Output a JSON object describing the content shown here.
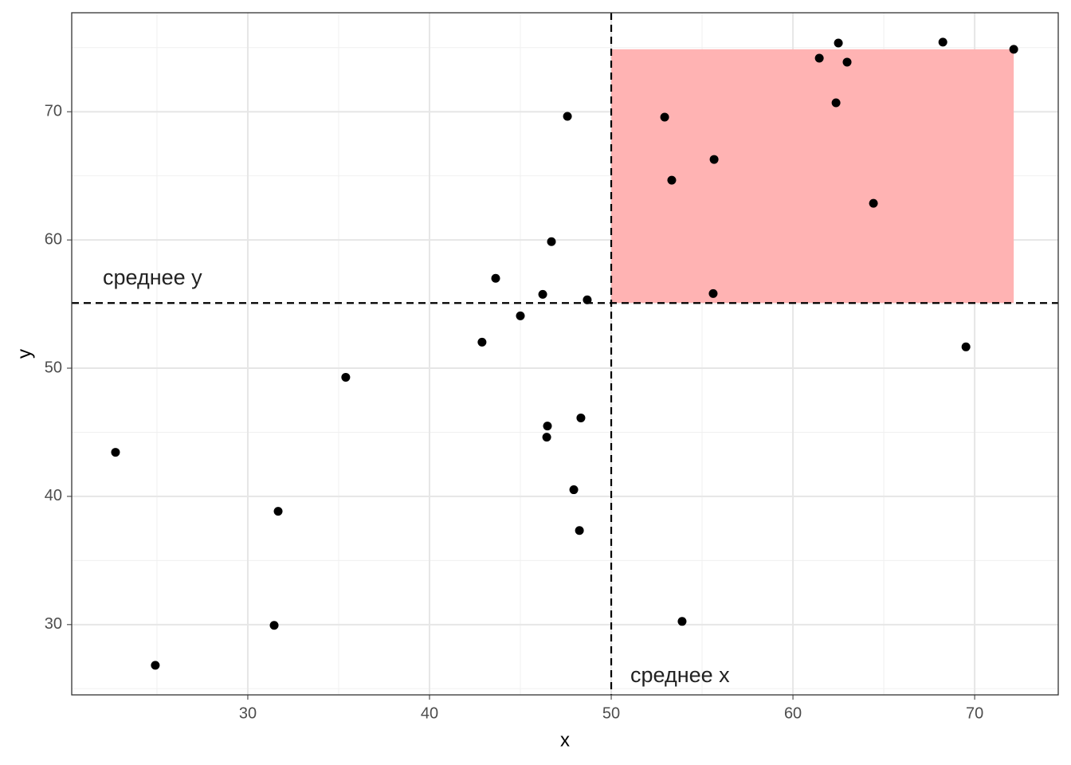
{
  "chart_data": {
    "type": "scatter",
    "x_label": "x",
    "y_label": "y",
    "xlim": [
      20.31,
      74.6
    ],
    "ylim": [
      24.52,
      77.72
    ],
    "xticks": [
      30,
      40,
      50,
      60,
      70
    ],
    "yticks": [
      30,
      40,
      50,
      60,
      70
    ],
    "grid": true,
    "color": "#000000",
    "x": [
      22.72,
      24.91,
      31.45,
      31.67,
      35.39,
      42.89,
      43.64,
      45.0,
      46.23,
      46.71,
      47.59,
      48.68,
      46.49,
      46.45,
      48.33,
      47.94,
      48.25,
      52.94,
      53.33,
      55.66,
      55.61,
      53.9,
      61.45,
      62.5,
      62.98,
      62.37,
      64.43,
      68.25,
      69.52,
      72.15
    ],
    "values": [
      43.44,
      26.83,
      29.94,
      38.84,
      49.29,
      52.03,
      57.01,
      54.08,
      55.76,
      59.87,
      69.64,
      55.33,
      45.49,
      44.62,
      46.12,
      40.52,
      37.34,
      69.58,
      64.66,
      66.28,
      55.82,
      30.25,
      74.18,
      75.36,
      73.87,
      70.7,
      62.86,
      75.43,
      51.66,
      74.87
    ],
    "reference_lines": {
      "x": 50.0,
      "y": 55.08
    },
    "highlight": {
      "xmin": 50.0,
      "xmax": 72.15,
      "ymin": 55.08,
      "ymax": 74.87,
      "color": "#ffb3b3"
    },
    "annotations": [
      "среднее y",
      "среднее x"
    ]
  }
}
